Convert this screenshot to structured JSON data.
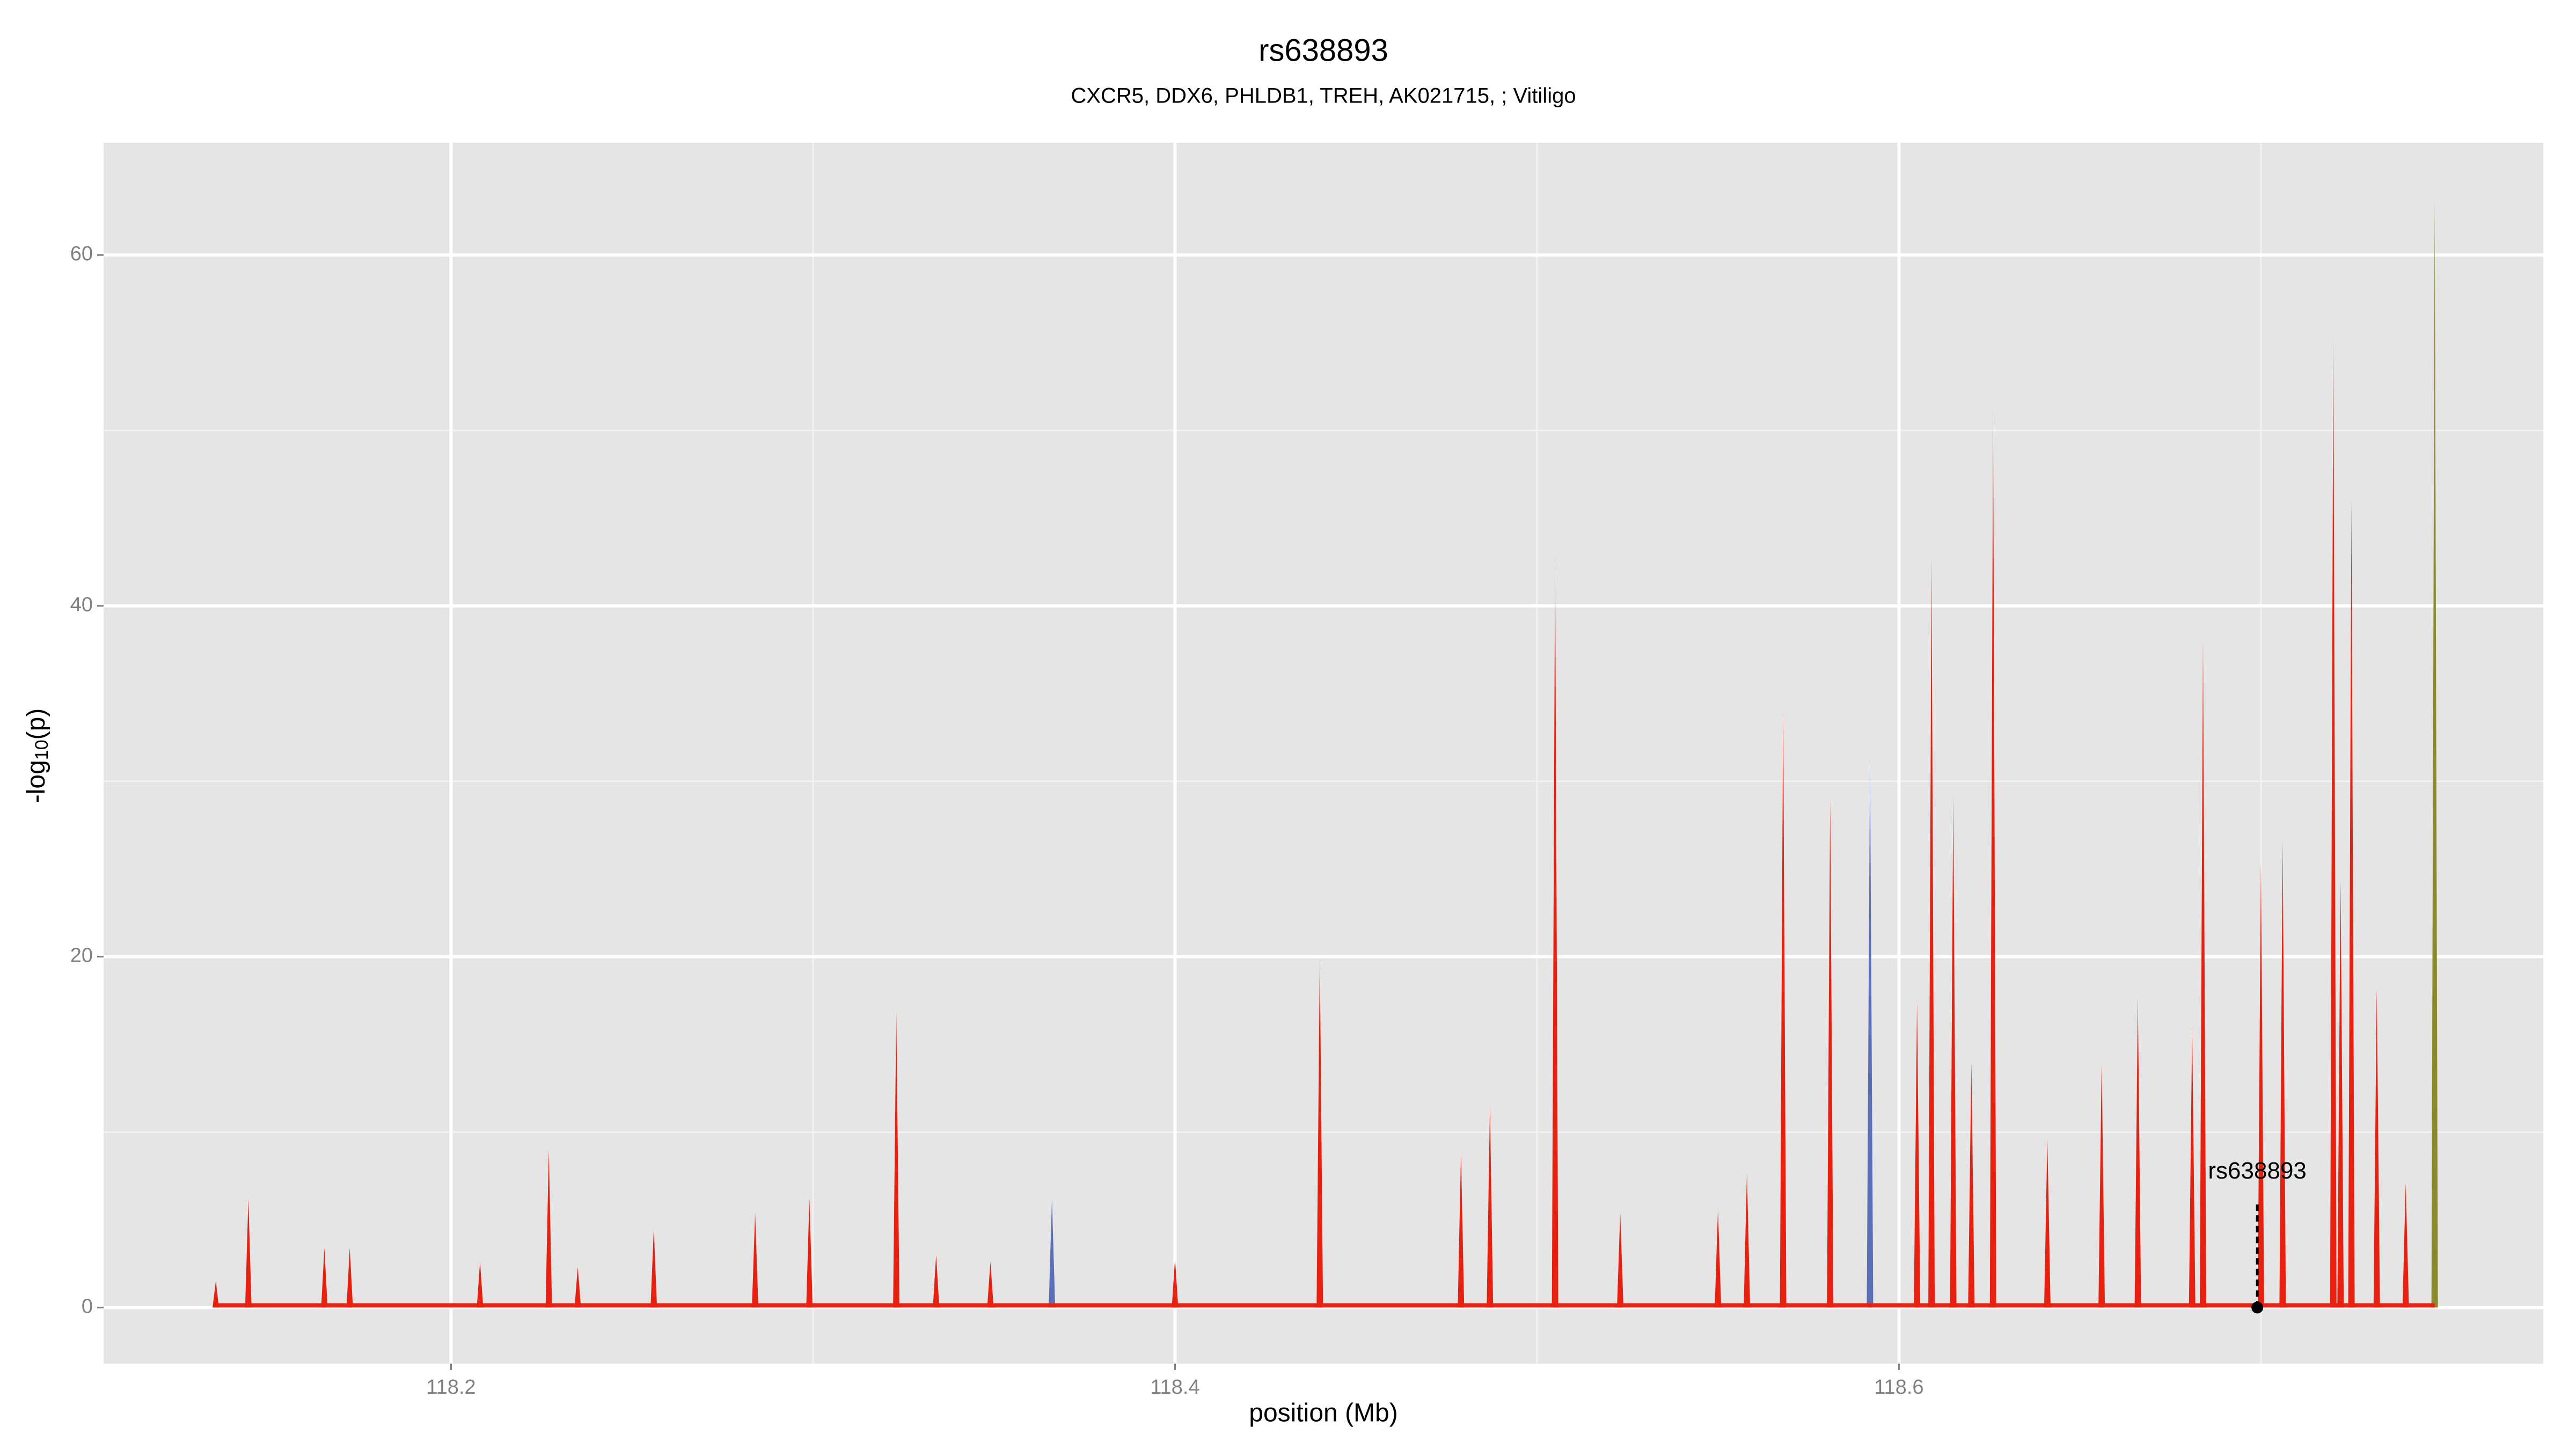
{
  "chart_data": {
    "type": "spike",
    "title": "rs638893",
    "subtitle": "CXCR5, DDX6, PHLDB1, TREH, AK021715,  ; Vitiligo",
    "x_label": "position (Mb)",
    "y_label_parts": [
      "-log",
      "10",
      "(p)"
    ],
    "xlim": [
      118.104,
      118.778
    ],
    "ylim": [
      -3.2,
      66.4
    ],
    "xticks": [
      118.2,
      118.4,
      118.6
    ],
    "yticks": [
      0,
      20,
      40,
      60
    ],
    "x_minor_grid": [
      118.3,
      118.5,
      118.7
    ],
    "y_minor_grid": [
      10,
      30,
      50
    ],
    "grid": true,
    "series": [
      {
        "color": "#e8200f",
        "x": [
          118.135,
          118.144,
          118.165,
          118.172,
          118.208,
          118.227,
          118.235,
          118.256,
          118.284,
          118.299,
          118.323,
          118.334,
          118.349,
          118.4,
          118.44,
          118.479,
          118.487,
          118.505,
          118.523,
          118.55,
          118.558,
          118.568,
          118.581,
          118.605,
          118.609,
          118.615,
          118.62,
          118.626,
          118.641,
          118.656,
          118.666,
          118.681,
          118.684,
          118.7,
          118.706,
          118.72,
          118.722,
          118.725,
          118.732,
          118.74
        ],
        "values": [
          1.5,
          6.2,
          3.4,
          3.4,
          2.6,
          9,
          2.3,
          4.5,
          5.4,
          6.2,
          16.8,
          3,
          2.6,
          2.8,
          20,
          8.8,
          11.5,
          42.9,
          5.4,
          5.6,
          7.7,
          34,
          29,
          17.4,
          42.7,
          29.2,
          14,
          51.2,
          9.6,
          14,
          17.7,
          16,
          38,
          25.4,
          26.6,
          55.3,
          24.4,
          46,
          18.2,
          7.1
        ]
      },
      {
        "color": "#5a6fb8",
        "x": [
          118.366,
          118.592
        ],
        "values": [
          6.2,
          31.3
        ]
      },
      {
        "color": "#8a8a2a",
        "x": [
          118.748
        ],
        "values": [
          63.2
        ]
      }
    ],
    "annotation": {
      "text": "rs638893",
      "x": 118.699,
      "y": 0
    }
  }
}
